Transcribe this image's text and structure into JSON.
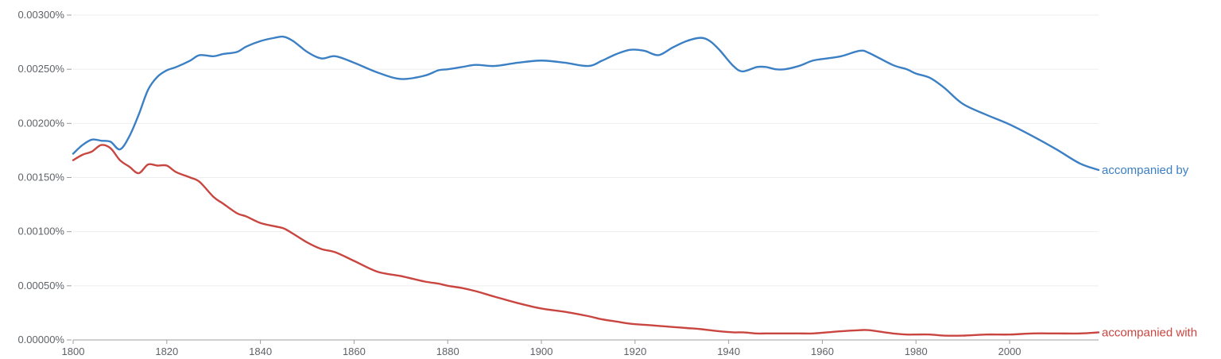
{
  "chart_data": {
    "type": "line",
    "title": "",
    "xlabel": "",
    "ylabel": "",
    "xlim": [
      1800,
      2019
    ],
    "ylim": [
      0,
      0.003
    ],
    "y_unit": "%",
    "grid": true,
    "legend": "inline-right",
    "x_ticks": [
      "1800",
      "1820",
      "1840",
      "1860",
      "1880",
      "1900",
      "1920",
      "1940",
      "1960",
      "1980",
      "2000"
    ],
    "y_ticks": [
      "0.00000%",
      "0.00050%",
      "0.00100%",
      "0.00150%",
      "0.00200%",
      "0.00250%",
      "0.00300%"
    ],
    "x": [
      1800,
      1802,
      1804,
      1806,
      1808,
      1810,
      1812,
      1814,
      1816,
      1818,
      1820,
      1822,
      1825,
      1827,
      1830,
      1832,
      1835,
      1837,
      1840,
      1843,
      1845,
      1847,
      1850,
      1853,
      1856,
      1860,
      1865,
      1870,
      1875,
      1878,
      1880,
      1883,
      1886,
      1890,
      1895,
      1900,
      1905,
      1910,
      1913,
      1916,
      1919,
      1922,
      1925,
      1928,
      1931,
      1934,
      1936,
      1938,
      1941,
      1943,
      1946,
      1948,
      1950,
      1952,
      1955,
      1958,
      1961,
      1964,
      1968,
      1970,
      1975,
      1978,
      1980,
      1983,
      1986,
      1990,
      1995,
      2000,
      2005,
      2010,
      2015,
      2019
    ],
    "series": [
      {
        "name": "accompanied by",
        "color": "#3b7fc4",
        "values": [
          0.00172,
          0.0018,
          0.00185,
          0.00184,
          0.00183,
          0.00176,
          0.00188,
          0.00208,
          0.00231,
          0.00243,
          0.00249,
          0.00252,
          0.00258,
          0.00263,
          0.00262,
          0.00264,
          0.00266,
          0.00271,
          0.00276,
          0.00279,
          0.0028,
          0.00276,
          0.00266,
          0.0026,
          0.00262,
          0.00256,
          0.00247,
          0.00241,
          0.00244,
          0.00249,
          0.0025,
          0.00252,
          0.00254,
          0.00253,
          0.00256,
          0.00258,
          0.00256,
          0.00253,
          0.00258,
          0.00264,
          0.00268,
          0.00267,
          0.00263,
          0.0027,
          0.00276,
          0.00279,
          0.00276,
          0.00268,
          0.00253,
          0.00248,
          0.00252,
          0.00252,
          0.0025,
          0.0025,
          0.00253,
          0.00258,
          0.0026,
          0.00262,
          0.00267,
          0.00265,
          0.00254,
          0.0025,
          0.00246,
          0.00242,
          0.00233,
          0.00218,
          0.00208,
          0.00199,
          0.00188,
          0.00176,
          0.00163,
          0.00157
        ]
      },
      {
        "name": "accompanied with",
        "color": "#c94540",
        "values": [
          0.00166,
          0.00171,
          0.00174,
          0.0018,
          0.00177,
          0.00166,
          0.0016,
          0.00154,
          0.00162,
          0.00161,
          0.00161,
          0.00155,
          0.0015,
          0.00146,
          0.00132,
          0.00126,
          0.00117,
          0.00114,
          0.00108,
          0.00105,
          0.00103,
          0.00098,
          0.0009,
          0.00084,
          0.00081,
          0.00073,
          0.00063,
          0.00059,
          0.00054,
          0.00052,
          0.0005,
          0.00048,
          0.00045,
          0.0004,
          0.00034,
          0.00029,
          0.00026,
          0.00022,
          0.00019,
          0.00017,
          0.00015,
          0.00014,
          0.00013,
          0.00012,
          0.00011,
          0.0001,
          9e-05,
          8e-05,
          7e-05,
          7e-05,
          6e-05,
          6e-05,
          6e-05,
          6e-05,
          6e-05,
          6e-05,
          7e-05,
          8e-05,
          9e-05,
          9e-05,
          6e-05,
          5e-05,
          5e-05,
          5e-05,
          4e-05,
          4e-05,
          5e-05,
          5e-05,
          6e-05,
          6e-05,
          6e-05,
          7e-05
        ]
      }
    ]
  }
}
